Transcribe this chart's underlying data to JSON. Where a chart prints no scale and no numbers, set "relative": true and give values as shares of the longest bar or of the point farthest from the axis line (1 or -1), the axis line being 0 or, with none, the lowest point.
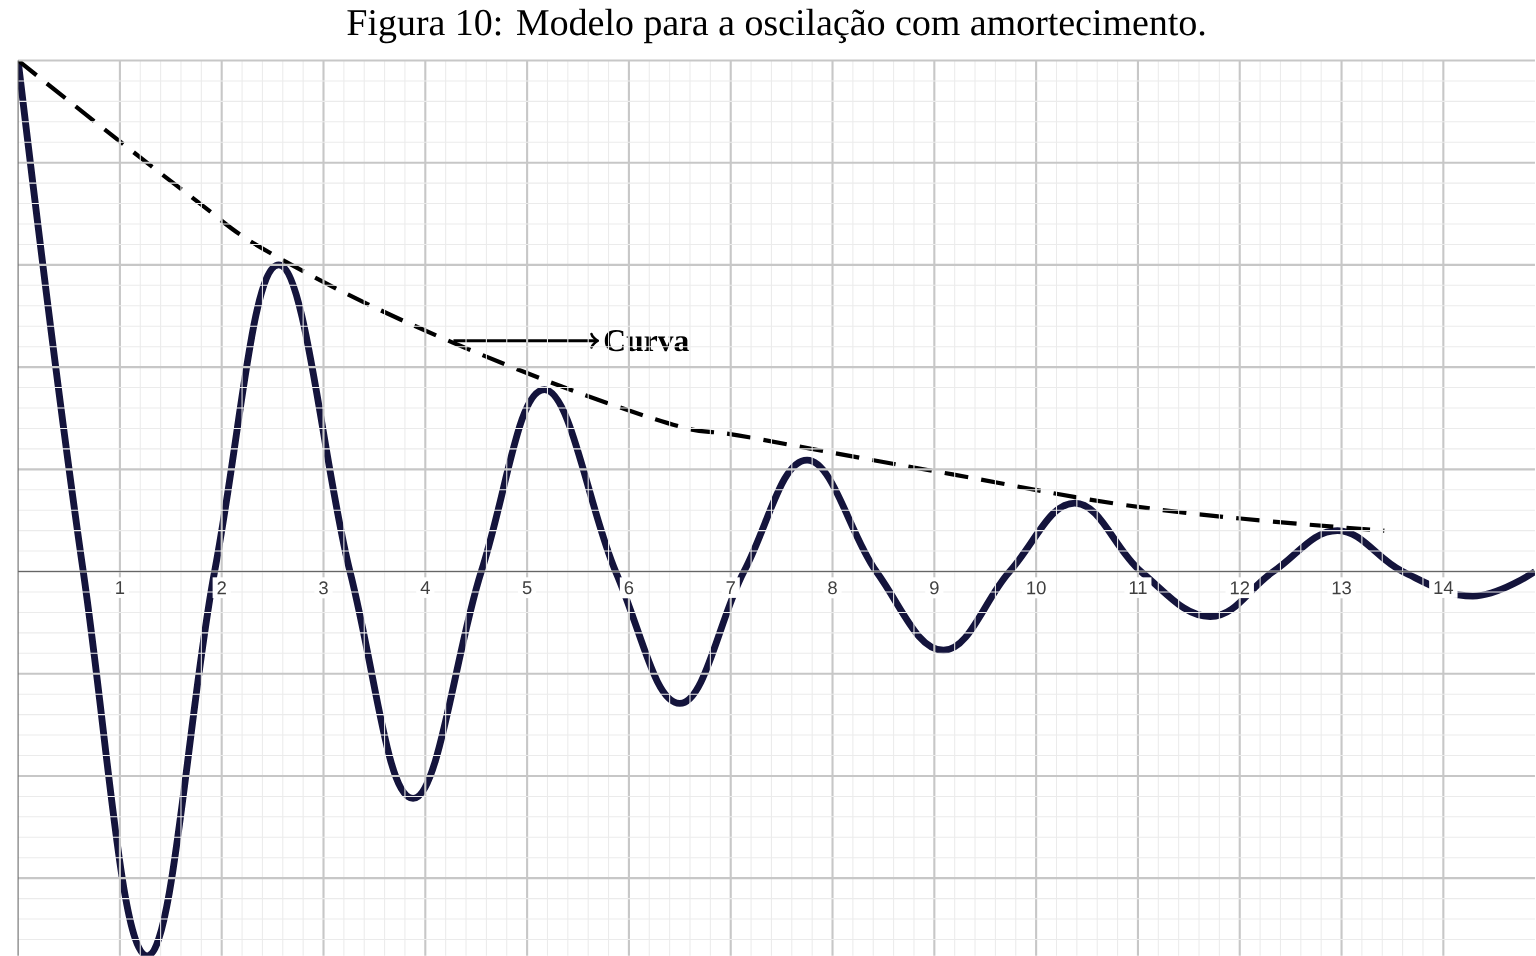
{
  "chart_data": {
    "type": "line",
    "title": "Figura 10: Modelo para a oscilação com amortecimento.",
    "relative": true,
    "xlim": [
      0,
      14.9
    ],
    "xticks": [
      1,
      2,
      3,
      4,
      5,
      6,
      7,
      8,
      9,
      10,
      11,
      12,
      13,
      14
    ],
    "tick_labels": "x",
    "grid": true,
    "marker": "none",
    "series": [
      {
        "color": "#14143c",
        "line_style": "solid",
        "x": [
          0,
          0.64,
          1.27,
          1.93,
          2.56,
          3.26,
          3.88,
          4.55,
          5.17,
          5.87,
          6.5,
          7.13,
          7.75,
          8.43,
          9.09,
          9.74,
          10.38,
          11.03,
          11.71,
          12.33,
          12.96,
          13.6,
          14.29,
          14.9
        ],
        "values": [
          1,
          0,
          -0.752,
          0,
          0.6,
          0,
          -0.444,
          0,
          0.356,
          0,
          -0.258,
          0,
          0.218,
          0,
          -0.154,
          0,
          0.134,
          0,
          -0.088,
          0,
          0.08,
          0,
          -0.048,
          0
        ]
      },
      {
        "color": "#000000",
        "line_style": "dashed",
        "x": [
          0,
          1.63,
          2.56,
          4.27,
          6.26,
          7.2,
          9.18,
          11.17,
          13.42
        ],
        "values": [
          1,
          0.744,
          0.614,
          0.448,
          0.298,
          0.262,
          0.19,
          0.122,
          0.08
        ]
      }
    ],
    "annotations": [
      "Curva"
    ]
  }
}
